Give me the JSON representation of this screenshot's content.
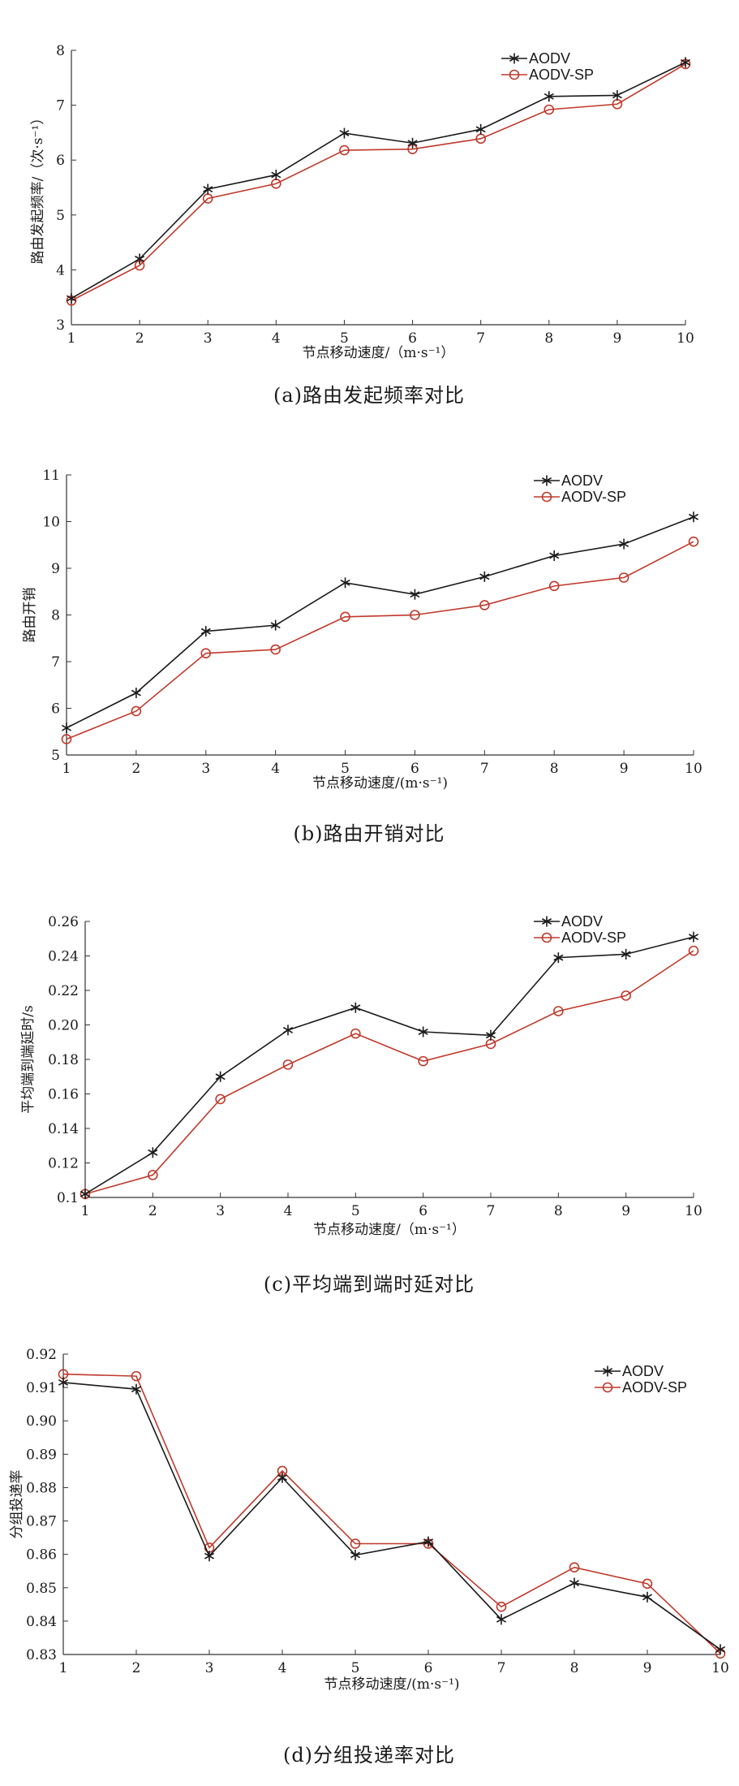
{
  "chart_data": [
    {
      "type": "line",
      "caption": "(a)路由发起频率对比",
      "xlabel": "节点移动速度/（m·s⁻¹）",
      "ylabel": "路由发起频率/（次·s⁻¹）",
      "x": [
        1,
        2,
        3,
        4,
        5,
        6,
        7,
        8,
        9,
        10
      ],
      "xlim": [
        1,
        10
      ],
      "ylim": [
        3,
        8
      ],
      "yticks": [
        "3",
        "4",
        "5",
        "6",
        "7",
        "8"
      ],
      "legend": "top-right",
      "series": [
        {
          "name": "AODV",
          "marker": "star",
          "color": "#1a1a1a",
          "values": [
            3.48,
            4.2,
            5.47,
            5.73,
            6.49,
            6.31,
            6.56,
            7.16,
            7.18,
            7.78
          ]
        },
        {
          "name": "AODV-SP",
          "marker": "circle",
          "color": "#c0392b",
          "values": [
            3.44,
            4.08,
            5.3,
            5.57,
            6.18,
            6.2,
            6.39,
            6.92,
            7.02,
            7.75
          ]
        }
      ]
    },
    {
      "type": "line",
      "caption": "(b)路由开销对比",
      "xlabel": "节点移动速度/(m·s⁻¹)",
      "ylabel": "路由开销",
      "x": [
        1,
        2,
        3,
        4,
        5,
        6,
        7,
        8,
        9,
        10
      ],
      "xlim": [
        1,
        10
      ],
      "ylim": [
        5,
        11
      ],
      "yticks": [
        "5",
        "6",
        "7",
        "8",
        "9",
        "10",
        "11"
      ],
      "legend": "top-right",
      "series": [
        {
          "name": "AODV",
          "marker": "star",
          "color": "#1a1a1a",
          "values": [
            5.58,
            6.33,
            7.65,
            7.78,
            8.69,
            8.44,
            8.82,
            9.27,
            9.52,
            10.1
          ]
        },
        {
          "name": "AODV-SP",
          "marker": "circle",
          "color": "#c0392b",
          "values": [
            5.34,
            5.94,
            7.18,
            7.26,
            7.96,
            8.0,
            8.21,
            8.62,
            8.8,
            9.57
          ]
        }
      ]
    },
    {
      "type": "line",
      "caption": "(c)平均端到端时延对比",
      "xlabel": "节点移动速度/（m·s⁻¹）",
      "ylabel": "平均端到端延时/s",
      "x": [
        1,
        2,
        3,
        4,
        5,
        6,
        7,
        8,
        9,
        10
      ],
      "xlim": [
        1,
        10
      ],
      "ylim": [
        0.1,
        0.26
      ],
      "yticks": [
        "0.1",
        "0.12",
        "0.14",
        "0.16",
        "0.18",
        "0.20",
        "0.22",
        "0.24",
        "0.26"
      ],
      "legend": "top-right",
      "series": [
        {
          "name": "AODV",
          "marker": "star",
          "color": "#1a1a1a",
          "values": [
            0.102,
            0.126,
            0.17,
            0.197,
            0.21,
            0.196,
            0.194,
            0.239,
            0.241,
            0.251
          ]
        },
        {
          "name": "AODV-SP",
          "marker": "circle",
          "color": "#c0392b",
          "values": [
            0.102,
            0.113,
            0.157,
            0.177,
            0.195,
            0.179,
            0.189,
            0.208,
            0.217,
            0.243
          ]
        }
      ]
    },
    {
      "type": "line",
      "caption": "(d)分组投递率对比",
      "xlabel": "节点移动速度/(m·s⁻¹)",
      "ylabel": "分组投递率",
      "x": [
        1,
        2,
        3,
        4,
        5,
        6,
        7,
        8,
        9,
        10
      ],
      "xlim": [
        1,
        10
      ],
      "ylim": [
        0.83,
        0.92
      ],
      "yticks": [
        "0.83",
        "0.84",
        "0.85",
        "0.86",
        "0.87",
        "0.88",
        "0.89",
        "0.90",
        "0.91",
        "0.92"
      ],
      "legend": "top-right",
      "series": [
        {
          "name": "AODV",
          "marker": "star",
          "color": "#1a1a1a",
          "values": [
            0.9115,
            0.9095,
            0.8595,
            0.883,
            0.8598,
            0.8638,
            0.8405,
            0.8514,
            0.8472,
            0.8315
          ]
        },
        {
          "name": "AODV-SP",
          "marker": "circle",
          "color": "#c0392b",
          "values": [
            0.914,
            0.9134,
            0.862,
            0.885,
            0.8632,
            0.8632,
            0.8443,
            0.8561,
            0.8512,
            0.8303
          ]
        }
      ]
    }
  ]
}
